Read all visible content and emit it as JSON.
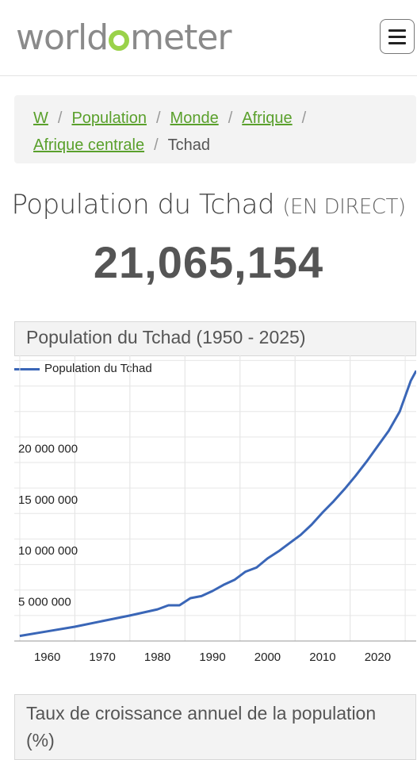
{
  "header": {
    "logo_text": "worldometer",
    "menu_icon": "hamburger-icon"
  },
  "breadcrumb": {
    "items": [
      "W",
      "Population",
      "Monde",
      "Afrique",
      "Afrique centrale"
    ],
    "current": "Tchad"
  },
  "page": {
    "title": "Population du Tchad",
    "live_label": "(EN DIRECT)",
    "counter": "21,065,154"
  },
  "chart_panel": {
    "heading": "Population du Tchad (1950 - 2025)"
  },
  "chart_data": {
    "type": "line",
    "series": [
      {
        "name": "Population du Tchad",
        "color": "#3a66b7",
        "points": [
          [
            1955,
            2500000
          ],
          [
            1960,
            2950000
          ],
          [
            1965,
            3400000
          ],
          [
            1970,
            3950000
          ],
          [
            1975,
            4500000
          ],
          [
            1980,
            5100000
          ],
          [
            1982,
            5500000
          ],
          [
            1984,
            5500000
          ],
          [
            1986,
            6200000
          ],
          [
            1988,
            6400000
          ],
          [
            1990,
            6900000
          ],
          [
            1992,
            7500000
          ],
          [
            1994,
            8000000
          ],
          [
            1996,
            8800000
          ],
          [
            1998,
            9200000
          ],
          [
            2000,
            10100000
          ],
          [
            2002,
            10800000
          ],
          [
            2004,
            11600000
          ],
          [
            2006,
            12400000
          ],
          [
            2008,
            13400000
          ],
          [
            2010,
            14600000
          ],
          [
            2012,
            15700000
          ],
          [
            2014,
            16900000
          ],
          [
            2016,
            18200000
          ],
          [
            2018,
            19600000
          ],
          [
            2020,
            21100000
          ],
          [
            2022,
            22600000
          ],
          [
            2024,
            24500000
          ],
          [
            2026,
            27500000
          ],
          [
            2027,
            28500000
          ]
        ]
      }
    ],
    "y_ticks": [
      5000000,
      10000000,
      15000000,
      20000000
    ],
    "y_tick_labels": [
      "5 000 000",
      "10 000 000",
      "15 000 000",
      "20 000 000"
    ],
    "x_ticks": [
      1960,
      1970,
      1980,
      1990,
      2000,
      2010,
      2020
    ],
    "x_tick_labels": [
      "1960",
      "1970",
      "1980",
      "1990",
      "2000",
      "2010",
      "2020"
    ],
    "xlim": [
      1954,
      2027
    ],
    "ylim": [
      2000000,
      30000000
    ],
    "legend_position": "top-left",
    "grid": true
  },
  "growth_panel": {
    "heading": "Taux de croissance annuel de la population (%)"
  }
}
